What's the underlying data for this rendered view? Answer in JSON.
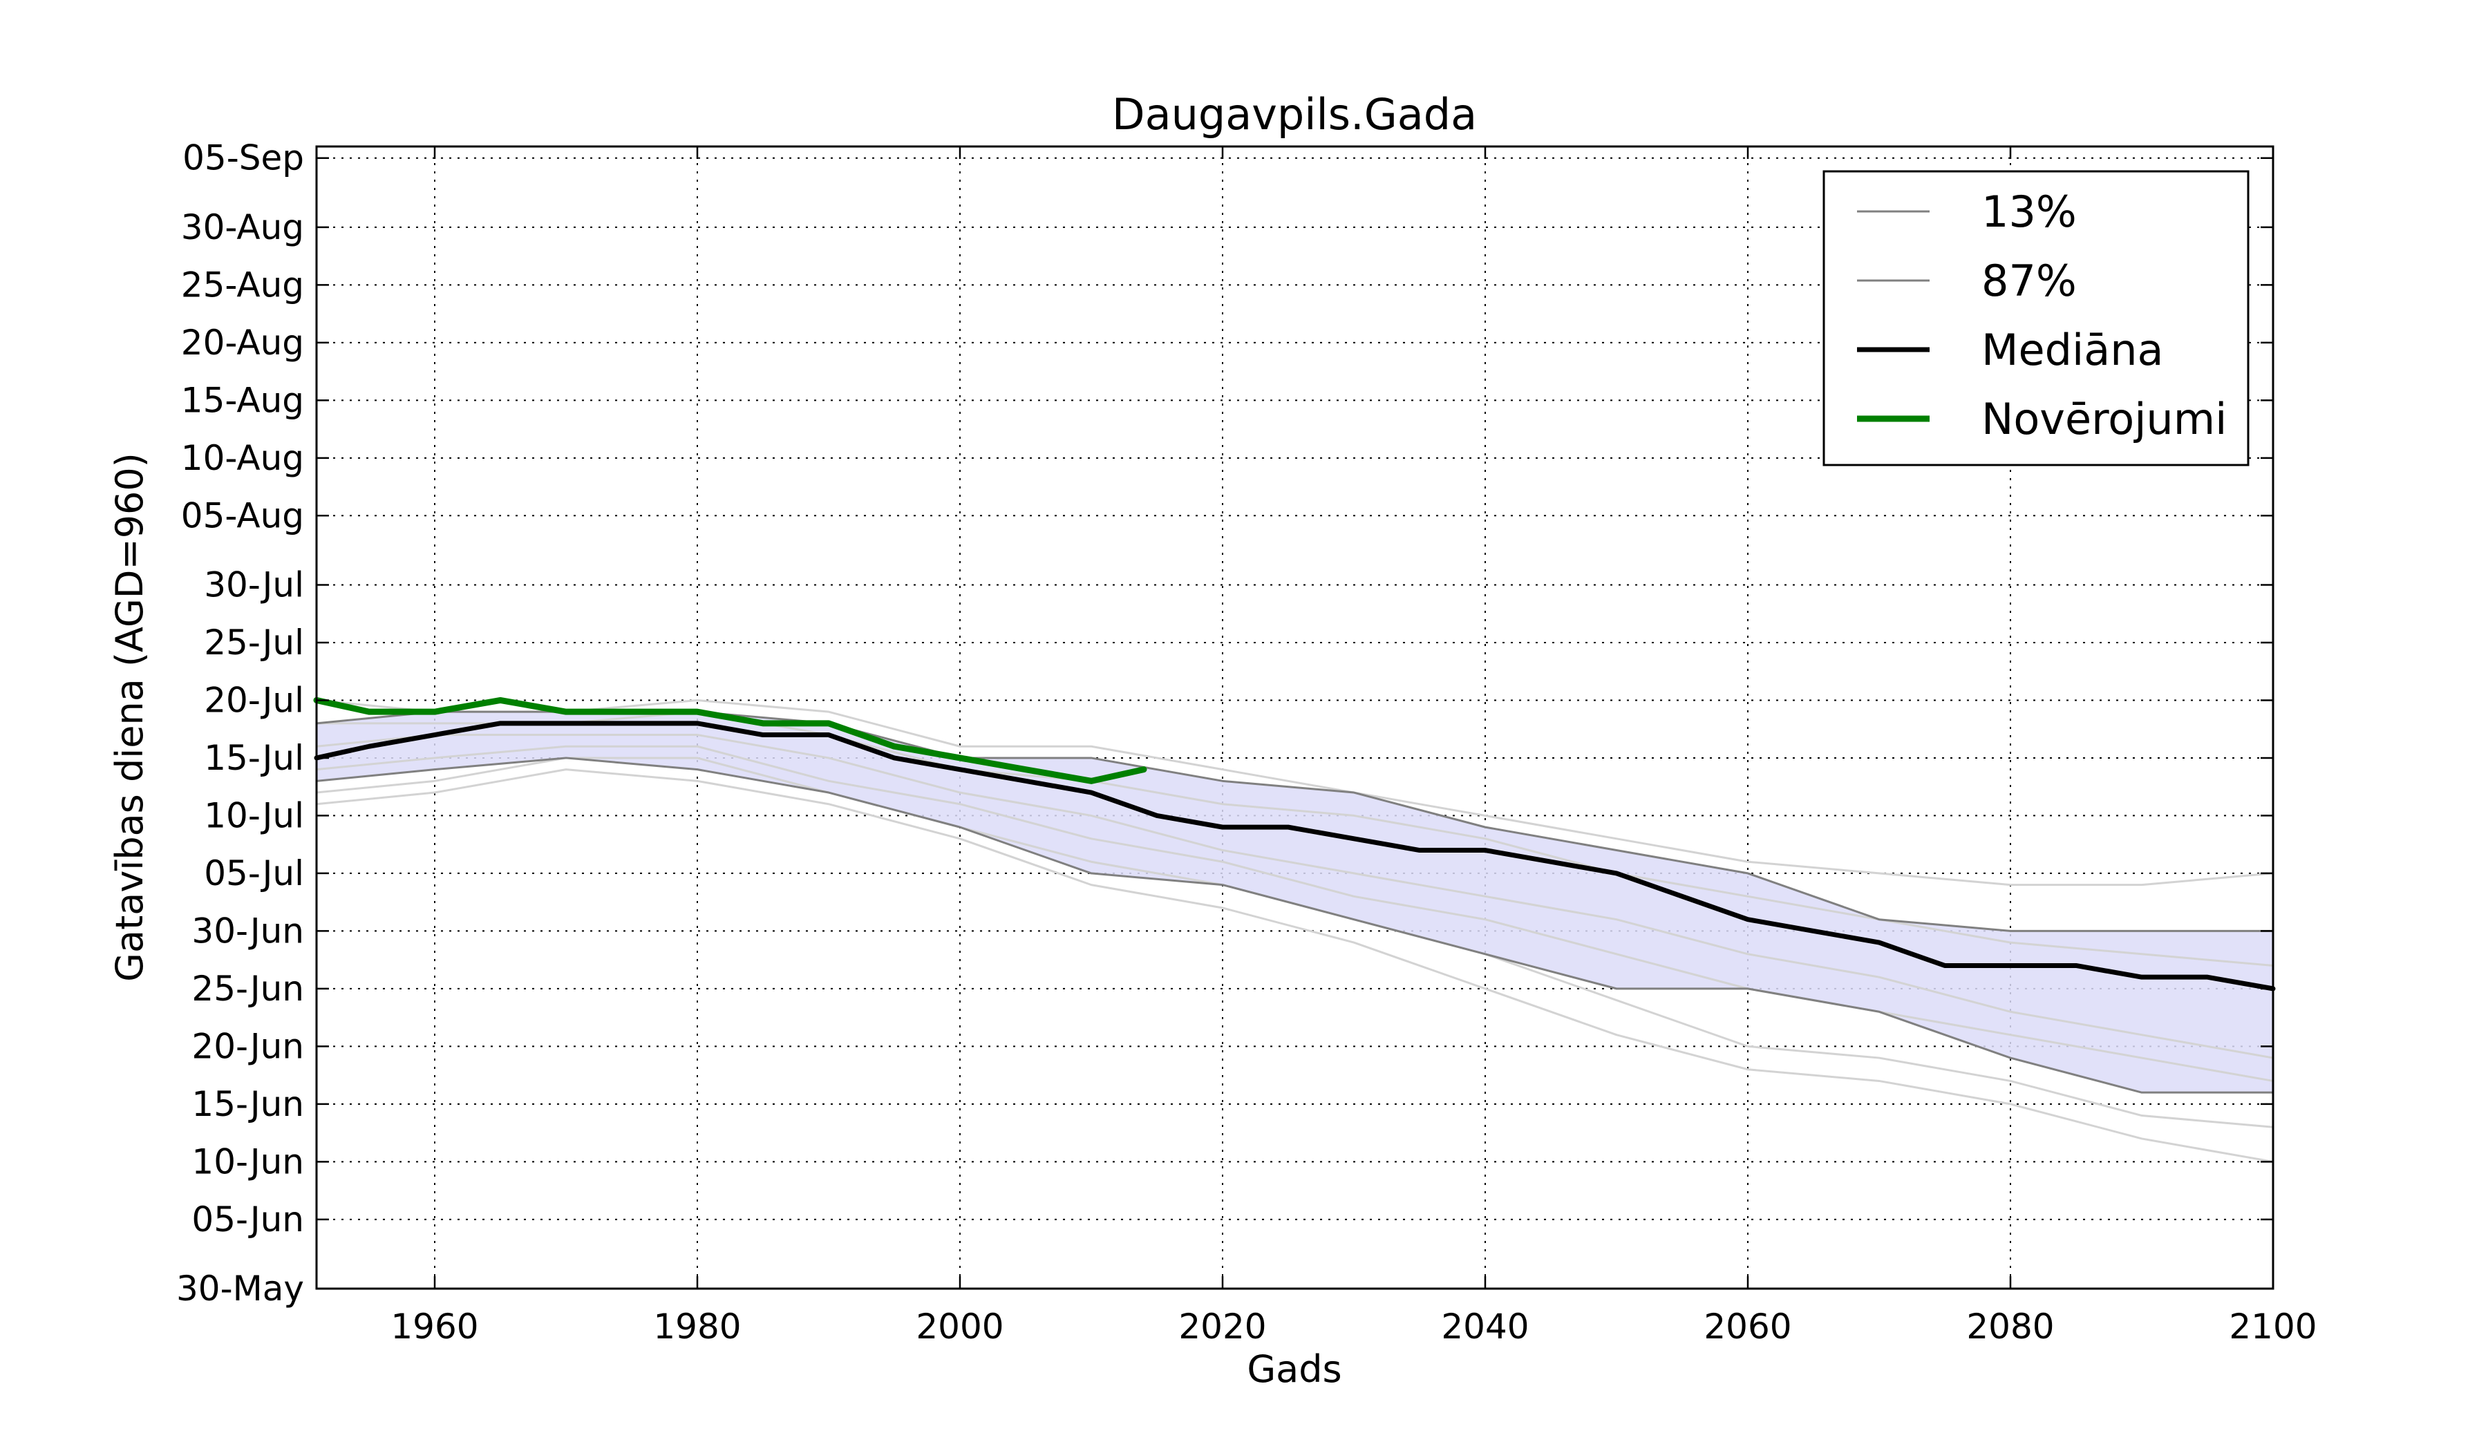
{
  "chart_data": {
    "type": "line",
    "title": "Daugavpils.Gada",
    "xlabel": "Gads",
    "ylabel": "Gatavības diena (AGD=960)",
    "xlim": [
      1951,
      2100
    ],
    "ylim": [
      "2000-05-30",
      "2000-09-06"
    ],
    "xticks": [
      1960,
      1980,
      2000,
      2020,
      2040,
      2060,
      2080,
      2100
    ],
    "yticks": [
      {
        "date": "2000-05-30",
        "label": "30-May"
      },
      {
        "date": "2000-06-05",
        "label": "05-Jun"
      },
      {
        "date": "2000-06-10",
        "label": "10-Jun"
      },
      {
        "date": "2000-06-15",
        "label": "15-Jun"
      },
      {
        "date": "2000-06-20",
        "label": "20-Jun"
      },
      {
        "date": "2000-06-25",
        "label": "25-Jun"
      },
      {
        "date": "2000-06-30",
        "label": "30-Jun"
      },
      {
        "date": "2000-07-05",
        "label": "05-Jul"
      },
      {
        "date": "2000-07-10",
        "label": "10-Jul"
      },
      {
        "date": "2000-07-15",
        "label": "15-Jul"
      },
      {
        "date": "2000-07-20",
        "label": "20-Jul"
      },
      {
        "date": "2000-07-25",
        "label": "25-Jul"
      },
      {
        "date": "2000-07-30",
        "label": "30-Jul"
      },
      {
        "date": "2000-08-05",
        "label": "05-Aug"
      },
      {
        "date": "2000-08-10",
        "label": "10-Aug"
      },
      {
        "date": "2000-08-15",
        "label": "15-Aug"
      },
      {
        "date": "2000-08-20",
        "label": "20-Aug"
      },
      {
        "date": "2000-08-25",
        "label": "25-Aug"
      },
      {
        "date": "2000-08-30",
        "label": "30-Aug"
      },
      {
        "date": "2000-09-05",
        "label": "05-Sep"
      }
    ],
    "grid": true,
    "legend_position": "top-right",
    "band": {
      "color": "#dcdcf8",
      "x": [
        1951,
        1960,
        1970,
        1980,
        1990,
        2000,
        2010,
        2020,
        2030,
        2040,
        2050,
        2060,
        2070,
        2080,
        2090,
        2100
      ],
      "lower": [
        "2000-07-13",
        "2000-07-14",
        "2000-07-15",
        "2000-07-14",
        "2000-07-12",
        "2000-07-09",
        "2000-07-05",
        "2000-07-04",
        "2000-07-01",
        "2000-06-28",
        "2000-06-25",
        "2000-06-25",
        "2000-06-23",
        "2000-06-19",
        "2000-06-16",
        "2000-06-16"
      ],
      "upper": [
        "2000-07-18",
        "2000-07-19",
        "2000-07-19",
        "2000-07-19",
        "2000-07-18",
        "2000-07-15",
        "2000-07-15",
        "2000-07-13",
        "2000-07-12",
        "2000-07-09",
        "2000-07-07",
        "2000-07-05",
        "2000-07-01",
        "2000-06-30",
        "2000-06-30",
        "2000-06-30"
      ]
    },
    "series": [
      {
        "name": "13%",
        "color": "#808080",
        "x": [
          1951,
          1960,
          1970,
          1980,
          1990,
          2000,
          2010,
          2020,
          2030,
          2040,
          2050,
          2060,
          2070,
          2080,
          2090,
          2100
        ],
        "y": [
          "2000-07-13",
          "2000-07-14",
          "2000-07-15",
          "2000-07-14",
          "2000-07-12",
          "2000-07-09",
          "2000-07-05",
          "2000-07-04",
          "2000-07-01",
          "2000-06-28",
          "2000-06-25",
          "2000-06-25",
          "2000-06-23",
          "2000-06-19",
          "2000-06-16",
          "2000-06-16"
        ]
      },
      {
        "name": "87%",
        "color": "#808080",
        "x": [
          1951,
          1960,
          1970,
          1980,
          1990,
          2000,
          2010,
          2020,
          2030,
          2040,
          2050,
          2060,
          2070,
          2080,
          2090,
          2100
        ],
        "y": [
          "2000-07-18",
          "2000-07-19",
          "2000-07-19",
          "2000-07-19",
          "2000-07-18",
          "2000-07-15",
          "2000-07-15",
          "2000-07-13",
          "2000-07-12",
          "2000-07-09",
          "2000-07-07",
          "2000-07-05",
          "2000-07-01",
          "2000-06-30",
          "2000-06-30",
          "2000-06-30"
        ]
      },
      {
        "name": "Mediāna",
        "color": "#000000",
        "x": [
          1951,
          1955,
          1960,
          1965,
          1970,
          1975,
          1980,
          1985,
          1990,
          1995,
          2000,
          2005,
          2010,
          2015,
          2020,
          2025,
          2030,
          2035,
          2040,
          2045,
          2050,
          2055,
          2060,
          2065,
          2070,
          2075,
          2080,
          2085,
          2090,
          2095,
          2100
        ],
        "y": [
          "2000-07-15",
          "2000-07-16",
          "2000-07-17",
          "2000-07-18",
          "2000-07-18",
          "2000-07-18",
          "2000-07-18",
          "2000-07-17",
          "2000-07-17",
          "2000-07-15",
          "2000-07-14",
          "2000-07-13",
          "2000-07-12",
          "2000-07-10",
          "2000-07-09",
          "2000-07-09",
          "2000-07-08",
          "2000-07-07",
          "2000-07-07",
          "2000-07-06",
          "2000-07-05",
          "2000-07-03",
          "2000-07-01",
          "2000-06-30",
          "2000-06-29",
          "2000-06-27",
          "2000-06-27",
          "2000-06-27",
          "2000-06-26",
          "2000-06-26",
          "2000-06-25"
        ]
      },
      {
        "name": "Novērojumi",
        "color": "#008000",
        "x": [
          1951,
          1955,
          1960,
          1965,
          1970,
          1975,
          1980,
          1985,
          1990,
          1995,
          2000,
          2005,
          2010,
          2014
        ],
        "y": [
          "2000-07-20",
          "2000-07-19",
          "2000-07-19",
          "2000-07-20",
          "2000-07-19",
          "2000-07-19",
          "2000-07-19",
          "2000-07-18",
          "2000-07-18",
          "2000-07-16",
          "2000-07-15",
          "2000-07-14",
          "2000-07-13",
          "2000-07-14"
        ]
      }
    ],
    "ensemble_members": {
      "color": "#d3d3d3",
      "x": [
        1951,
        1960,
        1970,
        1980,
        1990,
        2000,
        2010,
        2020,
        2030,
        2040,
        2050,
        2060,
        2070,
        2080,
        2090,
        2100
      ],
      "members": [
        [
          "2000-07-11",
          "2000-07-12",
          "2000-07-14",
          "2000-07-13",
          "2000-07-11",
          "2000-07-08",
          "2000-07-04",
          "2000-07-02",
          "2000-06-29",
          "2000-06-25",
          "2000-06-21",
          "2000-06-18",
          "2000-06-17",
          "2000-06-15",
          "2000-06-12",
          "2000-06-10"
        ],
        [
          "2000-07-20",
          "2000-07-19",
          "2000-07-19",
          "2000-07-20",
          "2000-07-19",
          "2000-07-16",
          "2000-07-16",
          "2000-07-14",
          "2000-07-12",
          "2000-07-10",
          "2000-07-08",
          "2000-07-06",
          "2000-07-05",
          "2000-07-04",
          "2000-07-04",
          "2000-07-05"
        ],
        [
          "2000-07-16",
          "2000-07-17",
          "2000-07-17",
          "2000-07-17",
          "2000-07-15",
          "2000-07-12",
          "2000-07-10",
          "2000-07-07",
          "2000-07-05",
          "2000-07-03",
          "2000-07-01",
          "2000-06-28",
          "2000-06-26",
          "2000-06-23",
          "2000-06-21",
          "2000-06-19"
        ],
        [
          "2000-07-14",
          "2000-07-15",
          "2000-07-16",
          "2000-07-16",
          "2000-07-13",
          "2000-07-11",
          "2000-07-08",
          "2000-07-06",
          "2000-07-03",
          "2000-07-01",
          "2000-06-28",
          "2000-06-25",
          "2000-06-23",
          "2000-06-21",
          "2000-06-19",
          "2000-06-17"
        ],
        [
          "2000-07-18",
          "2000-07-18",
          "2000-07-18",
          "2000-07-19",
          "2000-07-17",
          "2000-07-14",
          "2000-07-13",
          "2000-07-11",
          "2000-07-10",
          "2000-07-08",
          "2000-07-05",
          "2000-07-03",
          "2000-07-01",
          "2000-06-29",
          "2000-06-28",
          "2000-06-27"
        ],
        [
          "2000-07-12",
          "2000-07-13",
          "2000-07-15",
          "2000-07-15",
          "2000-07-12",
          "2000-07-09",
          "2000-07-06",
          "2000-07-04",
          "2000-07-01",
          "2000-06-28",
          "2000-06-24",
          "2000-06-20",
          "2000-06-19",
          "2000-06-17",
          "2000-06-14",
          "2000-06-13"
        ]
      ]
    }
  }
}
